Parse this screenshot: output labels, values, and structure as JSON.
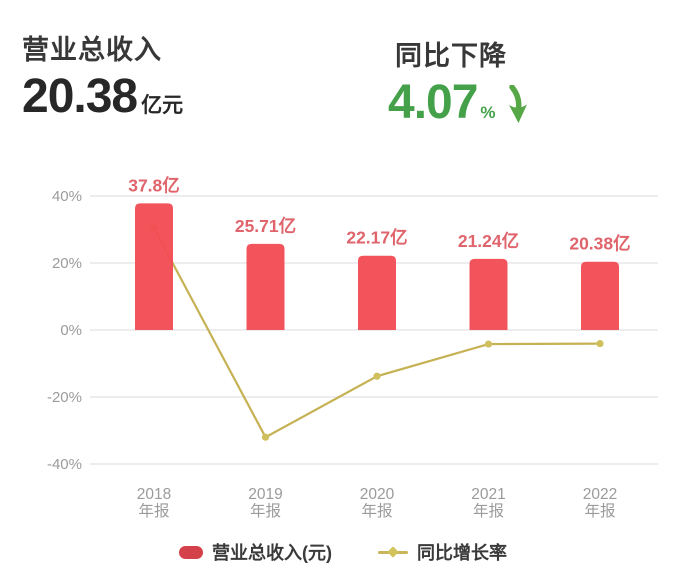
{
  "stats": {
    "revenue": {
      "title": "营业总收入",
      "value": "20.38",
      "unit": "亿元"
    },
    "yoy": {
      "title": "同比下降",
      "value": "4.07",
      "unit": "%",
      "direction": "down",
      "color": "#44a14a"
    }
  },
  "chart_data": {
    "type": "bar",
    "title": "",
    "categories": [
      "2018",
      "2019",
      "2020",
      "2021",
      "2022"
    ],
    "category_sublabel": "年报",
    "series": [
      {
        "name": "营业总收入(元)",
        "type": "bar",
        "unit": "亿",
        "values": [
          37.8,
          25.71,
          22.17,
          21.24,
          20.38
        ],
        "labels": [
          "37.8亿",
          "25.71亿",
          "22.17亿",
          "21.24亿",
          "20.38亿"
        ],
        "color": "#f24b53",
        "label_color": "#e0646c"
      },
      {
        "name": "同比增长率",
        "type": "line",
        "unit": "%",
        "values": [
          30.4,
          -32,
          -13.8,
          -4.2,
          -4.07
        ],
        "values_estimated_from_gridlines": true,
        "color": "#c6b254",
        "marker_color": "#cfbf5d"
      }
    ],
    "yticks": [
      {
        "label": "40%",
        "value": 40
      },
      {
        "label": "20%",
        "value": 20
      },
      {
        "label": "0%",
        "value": 0
      },
      {
        "label": "-20%",
        "value": -20
      },
      {
        "label": "-40%",
        "value": -40
      }
    ],
    "ylim": [
      -48,
      48
    ],
    "grid": "horizontal",
    "grid_color": "#e7e7ea",
    "axis_color": "#9b9b9b",
    "legend_position": "bottom"
  },
  "legend": {
    "swatch_bar_color": "#d5414b",
    "swatch_line_color": "#c9b65a"
  }
}
